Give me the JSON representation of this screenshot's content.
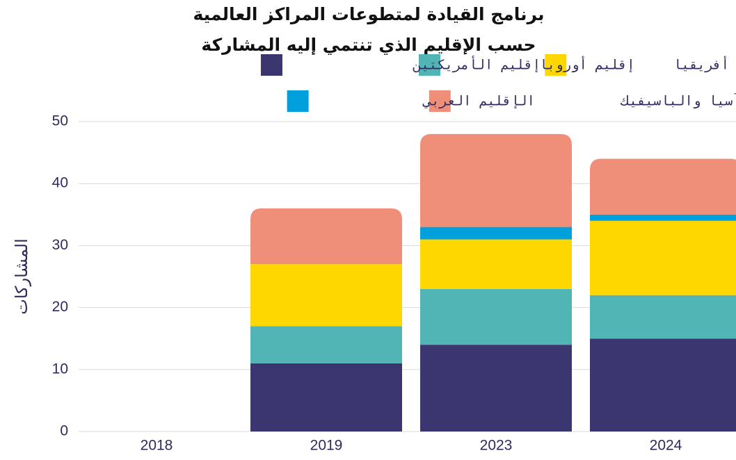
{
  "chart_data": {
    "type": "stacked_bar",
    "title": "برنامج القيادة لمتطوعات المراكز العالمية",
    "subtitle": "حسب الإقليم الذي تنتمي إليه المشاركة",
    "y_label": "المشاركات",
    "categories": [
      "2018",
      "2019",
      "2023",
      "2024"
    ],
    "series": [
      {
        "name": "إقليم الأمريكتين",
        "color": "#3c3670",
        "values": [
          0,
          11,
          14,
          15
        ]
      },
      {
        "name": "إقليم أوروبا",
        "color": "#52b5b5",
        "values": [
          0,
          6,
          9,
          7
        ]
      },
      {
        "name": "إقليم أفريقيا",
        "color": "#ffd700",
        "values": [
          0,
          10,
          8,
          12
        ]
      },
      {
        "name": "الإقليم العربي",
        "color": "#00a0dc",
        "values": [
          0,
          0,
          2,
          1
        ]
      },
      {
        "name": "إقليم آسيا والباسيفيك",
        "color": "#ef8f7a",
        "values": [
          0,
          9,
          15,
          9
        ]
      }
    ],
    "ylim": [
      0,
      50
    ],
    "yticks": [
      0,
      10,
      20,
      30,
      40,
      50
    ],
    "grid": true
  }
}
